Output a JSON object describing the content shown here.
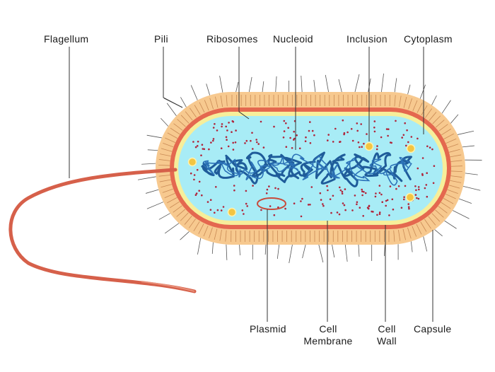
{
  "labels": {
    "flagellum": "Flagellum",
    "pili": "Pili",
    "ribosomes": "Ribosomes",
    "nucleoid": "Nucleoid",
    "inclusion": "Inclusion",
    "cytoplasm": "Cytoplasm",
    "plasmid": "Plasmid",
    "cell_membrane": [
      "Cell",
      "Membrane"
    ],
    "cell_wall": [
      "Cell",
      "Wall"
    ],
    "capsule": "Capsule"
  },
  "colors": {
    "capsule": "#f7c98f",
    "capsule_edge": "#f0b576",
    "cell_wall": "#e4684f",
    "membrane": "#f7ee9a",
    "cytoplasm": "#a8ecf6",
    "ribosome": "#b0243a",
    "nucleoid": "#1f5c9a",
    "inclusion": "#f3c542",
    "flagellum": "#d6604a",
    "plasmid": "#c94a3a",
    "leader": "#333333"
  }
}
